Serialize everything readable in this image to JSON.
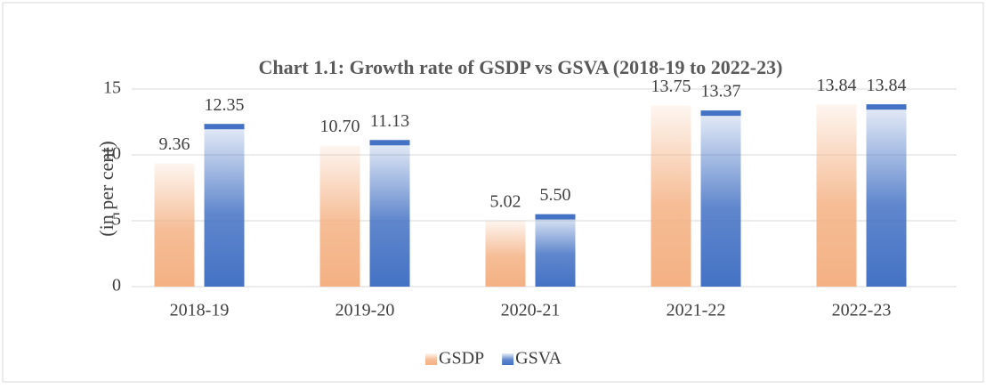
{
  "chart_data": {
    "type": "bar",
    "title": "Chart 1.1: Growth rate of GSDP vs GSVA (2018-19 to 2022-23)",
    "y_label": "(in per cent)",
    "categories": [
      "2018-19",
      "2019-20",
      "2020-21",
      "2021-22",
      "2022-23"
    ],
    "series": [
      {
        "name": "GSDP",
        "color": "#f4b183",
        "values": [
          9.36,
          10.7,
          5.02,
          13.75,
          13.84
        ],
        "value_labels": [
          "9.36",
          "10.70",
          "5.02",
          "13.75",
          "13.84"
        ]
      },
      {
        "name": "GSVA",
        "color": "#4472c4",
        "values": [
          12.35,
          11.13,
          5.5,
          13.37,
          13.84
        ],
        "value_labels": [
          "12.35",
          "11.13",
          "5.50",
          "13.37",
          "13.84"
        ]
      }
    ],
    "ylim": [
      0,
      15
    ],
    "yticks": [
      0,
      5,
      10,
      15
    ],
    "grid": true,
    "legend": "bottom"
  }
}
